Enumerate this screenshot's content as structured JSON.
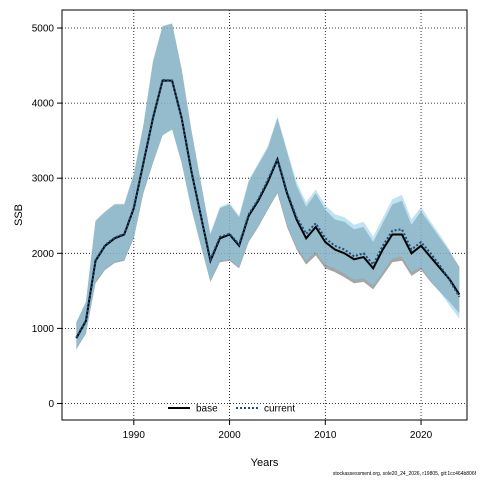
{
  "chart_data": {
    "type": "line",
    "xlabel": "Years",
    "ylabel": "SSB",
    "xlim": [
      1982.5,
      2024.8
    ],
    "ylim": [
      -220,
      5240
    ],
    "x_ticks": [
      1990,
      2000,
      2010,
      2020
    ],
    "y_ticks": [
      0,
      1000,
      2000,
      3000,
      4000,
      5000
    ],
    "grid": true,
    "legend_position": "bottom-center",
    "series": [
      {
        "name": "base",
        "color": "#000000",
        "line_style": "solid",
        "band_color": "#808080",
        "x": [
          1984,
          1985,
          1986,
          1987,
          1988,
          1989,
          1990,
          1991,
          1992,
          1993,
          1994,
          1995,
          1996,
          1997,
          1998,
          1999,
          2000,
          2001,
          2002,
          2003,
          2004,
          2005,
          2006,
          2007,
          2008,
          2009,
          2010,
          2011,
          2012,
          2013,
          2014,
          2015,
          2016,
          2017,
          2018,
          2019,
          2020,
          2021,
          2022,
          2023,
          2024
        ],
        "values": [
          870,
          1100,
          1900,
          2100,
          2200,
          2250,
          2600,
          3200,
          3800,
          4300,
          4300,
          3800,
          3100,
          2500,
          1900,
          2200,
          2250,
          2100,
          2500,
          2700,
          2950,
          3250,
          2800,
          2450,
          2200,
          2350,
          2150,
          2050,
          2000,
          1920,
          1950,
          1800,
          2050,
          2250,
          2250,
          2000,
          2100,
          1950,
          1800,
          1650,
          1450
        ],
        "lower": [
          720,
          930,
          1600,
          1780,
          1870,
          1900,
          2200,
          2800,
          3200,
          3570,
          3650,
          3200,
          2600,
          2100,
          1620,
          1880,
          1900,
          1800,
          2150,
          2350,
          2580,
          2800,
          2350,
          2050,
          1850,
          1970,
          1800,
          1750,
          1680,
          1600,
          1620,
          1520,
          1700,
          1880,
          1900,
          1700,
          1780,
          1620,
          1480,
          1350,
          1200
        ],
        "upper": [
          1080,
          1350,
          2430,
          2550,
          2650,
          2650,
          3050,
          3700,
          4550,
          5020,
          5060,
          4450,
          3650,
          2950,
          2250,
          2600,
          2650,
          2480,
          2950,
          3180,
          3400,
          3800,
          3350,
          2900,
          2620,
          2800,
          2580,
          2450,
          2420,
          2320,
          2350,
          2150,
          2400,
          2650,
          2700,
          2380,
          2560,
          2380,
          2200,
          2020,
          1820
        ]
      },
      {
        "name": "current",
        "color": "#1f4e79",
        "line_style": "dotted",
        "band_color": "#87ceeb",
        "x": [
          1984,
          1985,
          1986,
          1987,
          1988,
          1989,
          1990,
          1991,
          1992,
          1993,
          1994,
          1995,
          1996,
          1997,
          1998,
          1999,
          2000,
          2001,
          2002,
          2003,
          2004,
          2005,
          2006,
          2007,
          2008,
          2009,
          2010,
          2011,
          2012,
          2013,
          2014,
          2015,
          2016,
          2017,
          2018,
          2019,
          2020,
          2021,
          2022,
          2023,
          2024
        ],
        "values": [
          880,
          1110,
          1910,
          2110,
          2210,
          2260,
          2610,
          3210,
          3810,
          4310,
          4300,
          3800,
          3100,
          2500,
          1920,
          2220,
          2260,
          2120,
          2520,
          2720,
          2980,
          3260,
          2820,
          2480,
          2260,
          2400,
          2200,
          2100,
          2050,
          1960,
          2000,
          1850,
          2100,
          2300,
          2320,
          2050,
          2150,
          2000,
          1830,
          1640,
          1420
        ],
        "lower": [
          730,
          940,
          1620,
          1800,
          1890,
          1920,
          2220,
          2820,
          3220,
          3580,
          3650,
          3200,
          2600,
          2100,
          1640,
          1900,
          1920,
          1820,
          2170,
          2370,
          2600,
          2820,
          2380,
          2080,
          1900,
          2020,
          1850,
          1800,
          1730,
          1650,
          1670,
          1570,
          1750,
          1930,
          1960,
          1750,
          1820,
          1640,
          1480,
          1300,
          1130
        ],
        "upper": [
          1080,
          1360,
          2440,
          2560,
          2660,
          2660,
          3060,
          3710,
          4560,
          5030,
          5060,
          4450,
          3650,
          2950,
          2270,
          2620,
          2670,
          2500,
          2980,
          3200,
          3430,
          3820,
          3380,
          2950,
          2680,
          2850,
          2640,
          2520,
          2480,
          2380,
          2420,
          2220,
          2470,
          2720,
          2780,
          2450,
          2620,
          2420,
          2240,
          2040,
          1800
        ]
      }
    ]
  },
  "footer": "stockassessment.org, sole20_24_2026, r19805, git:1cc464b806f"
}
